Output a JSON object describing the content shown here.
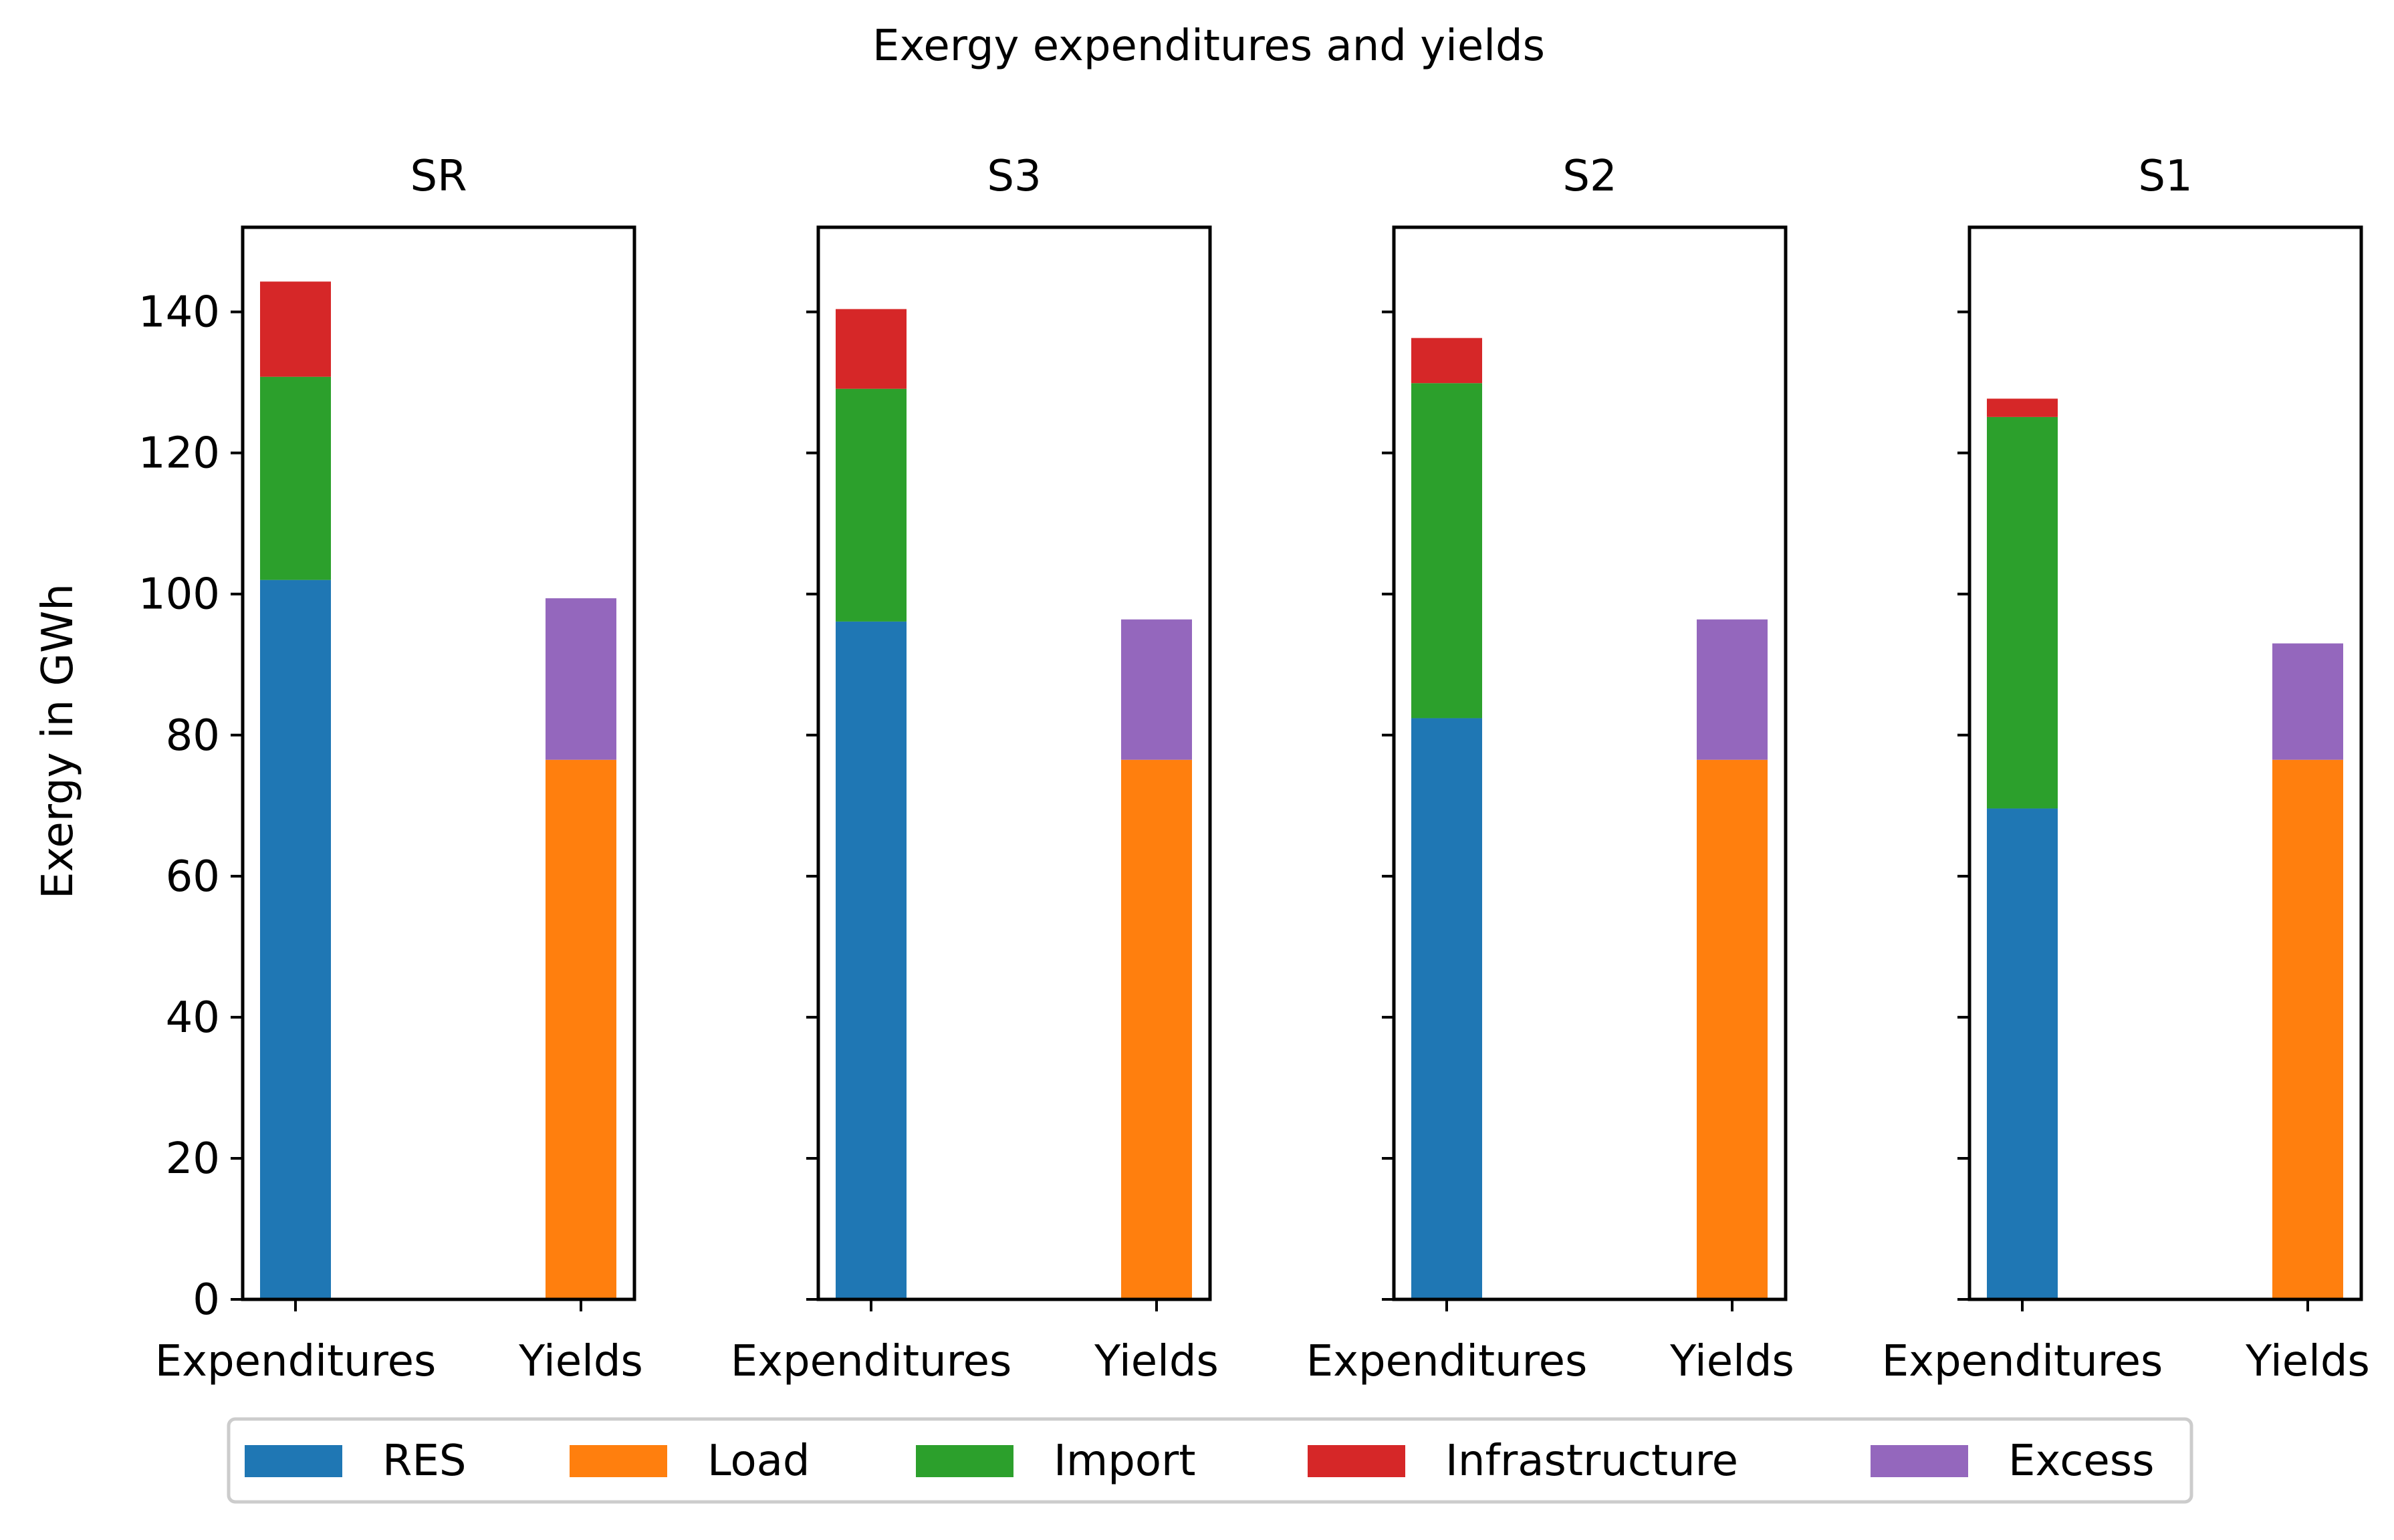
{
  "chart_data": {
    "type": "bar",
    "stacked": true,
    "title": "Exergy expenditures and yields",
    "ylabel": "Exergy in GWh",
    "xlabel": "",
    "ylim": [
      0,
      152
    ],
    "yticks": [
      0,
      20,
      40,
      60,
      80,
      100,
      120,
      140
    ],
    "ytick_labels": [
      "0",
      "20",
      "40",
      "60",
      "80",
      "100",
      "120",
      "140"
    ],
    "categories": [
      "Expenditures",
      "Yields"
    ],
    "legend_position": "bottom-center",
    "series_styles": [
      {
        "name": "RES",
        "color": "#1f77b4"
      },
      {
        "name": "Load",
        "color": "#ff7f0e"
      },
      {
        "name": "Import",
        "color": "#2ca02c"
      },
      {
        "name": "Infrastructure",
        "color": "#d62728"
      },
      {
        "name": "Excess",
        "color": "#9467bd"
      }
    ],
    "panels": [
      {
        "title": "SR",
        "bars": {
          "Expenditures": [
            {
              "series": "RES",
              "value": 102.0
            },
            {
              "series": "Import",
              "value": 28.8
            },
            {
              "series": "Infrastructure",
              "value": 13.5
            }
          ],
          "Yields": [
            {
              "series": "Load",
              "value": 76.5
            },
            {
              "series": "Excess",
              "value": 22.9
            }
          ]
        }
      },
      {
        "title": "S3",
        "bars": {
          "Expenditures": [
            {
              "series": "RES",
              "value": 96.1
            },
            {
              "series": "Import",
              "value": 33.0
            },
            {
              "series": "Infrastructure",
              "value": 11.3
            }
          ],
          "Yields": [
            {
              "series": "Load",
              "value": 76.5
            },
            {
              "series": "Excess",
              "value": 19.9
            }
          ]
        }
      },
      {
        "title": "S2",
        "bars": {
          "Expenditures": [
            {
              "series": "RES",
              "value": 82.4
            },
            {
              "series": "Import",
              "value": 47.5
            },
            {
              "series": "Infrastructure",
              "value": 6.4
            }
          ],
          "Yields": [
            {
              "series": "Load",
              "value": 76.5
            },
            {
              "series": "Excess",
              "value": 19.9
            }
          ]
        }
      },
      {
        "title": "S1",
        "bars": {
          "Expenditures": [
            {
              "series": "RES",
              "value": 69.6
            },
            {
              "series": "Import",
              "value": 55.5
            },
            {
              "series": "Infrastructure",
              "value": 2.6
            }
          ],
          "Yields": [
            {
              "series": "Load",
              "value": 76.5
            },
            {
              "series": "Excess",
              "value": 16.5
            }
          ]
        }
      }
    ]
  }
}
